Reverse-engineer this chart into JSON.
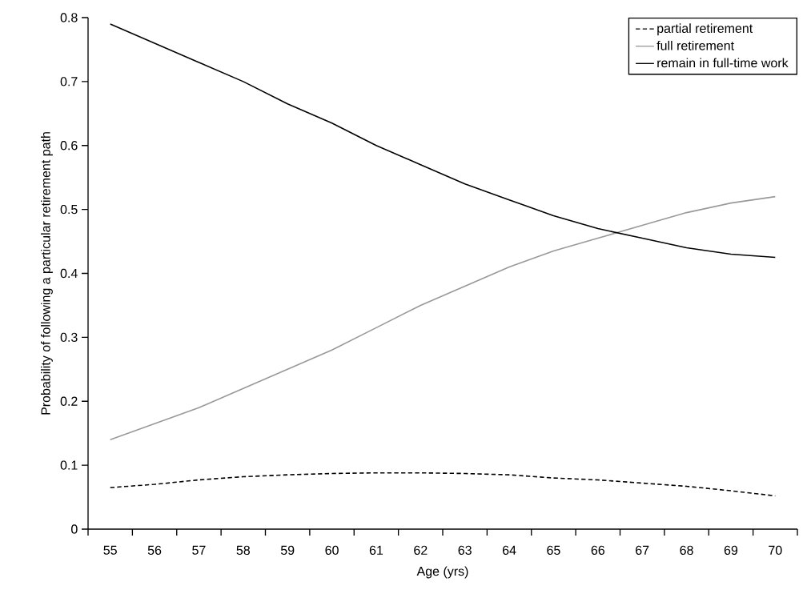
{
  "chart_data": {
    "type": "line",
    "xlabel": "Age (yrs)",
    "ylabel": "Probability of following a particular retirement path",
    "categories": [
      "55",
      "56",
      "57",
      "58",
      "59",
      "60",
      "61",
      "62",
      "63",
      "64",
      "65",
      "66",
      "67",
      "68",
      "69",
      "70"
    ],
    "series": [
      {
        "name": "partial retirement",
        "color": "#000000",
        "line_style": "dashed",
        "values": [
          0.065,
          0.07,
          0.077,
          0.082,
          0.085,
          0.087,
          0.088,
          0.088,
          0.087,
          0.085,
          0.08,
          0.077,
          0.072,
          0.067,
          0.06,
          0.052
        ]
      },
      {
        "name": "full retirement",
        "color": "#999999",
        "line_style": "solid",
        "values": [
          0.14,
          0.165,
          0.19,
          0.22,
          0.25,
          0.28,
          0.315,
          0.35,
          0.38,
          0.41,
          0.435,
          0.455,
          0.475,
          0.495,
          0.51,
          0.52
        ]
      },
      {
        "name": "remain in full-time work",
        "color": "#000000",
        "line_style": "solid",
        "values": [
          0.79,
          0.76,
          0.73,
          0.7,
          0.665,
          0.635,
          0.6,
          0.57,
          0.54,
          0.515,
          0.49,
          0.47,
          0.455,
          0.44,
          0.43,
          0.425
        ]
      }
    ],
    "ylim": [
      0,
      0.8
    ],
    "yticks": [
      0,
      0.1,
      0.2,
      0.3,
      0.4,
      0.5,
      0.6,
      0.7,
      0.8
    ],
    "legend": "top right"
  }
}
